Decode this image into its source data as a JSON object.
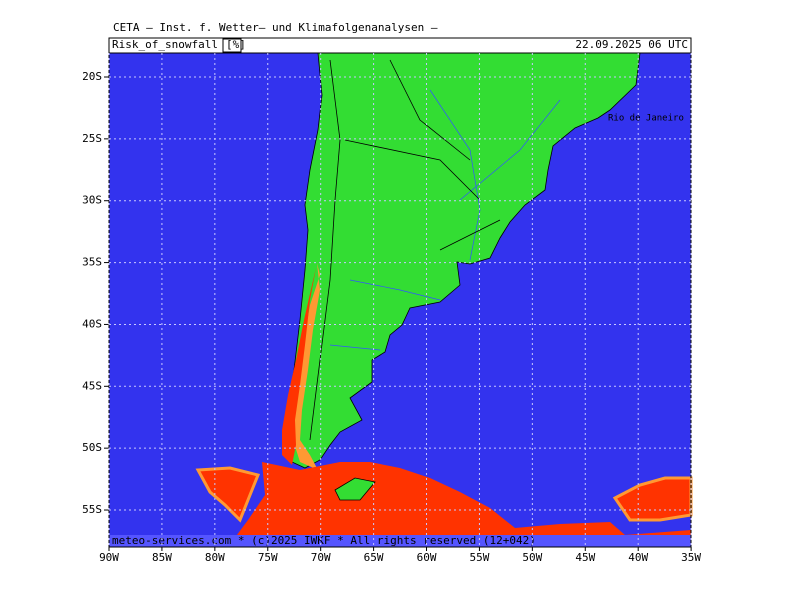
{
  "header": {
    "title": "CETA – Inst. f. Wetter– und Klimafolgenanalysen –",
    "field": "Risk_of_snowfall",
    "unit": "[%]",
    "datetime": "22.09.2025 06 UTC"
  },
  "map": {
    "lat_ticks": [
      {
        "value": -20,
        "label": "20S"
      },
      {
        "value": -25,
        "label": "25S"
      },
      {
        "value": -30,
        "label": "30S"
      },
      {
        "value": -35,
        "label": "35S"
      },
      {
        "value": -40,
        "label": "40S"
      },
      {
        "value": -45,
        "label": "45S"
      },
      {
        "value": -50,
        "label": "50S"
      },
      {
        "value": -55,
        "label": "55S"
      }
    ],
    "lon_ticks": [
      {
        "value": -90,
        "label": "90W"
      },
      {
        "value": -85,
        "label": "85W"
      },
      {
        "value": -80,
        "label": "80W"
      },
      {
        "value": -75,
        "label": "75W"
      },
      {
        "value": -70,
        "label": "70W"
      },
      {
        "value": -65,
        "label": "65W"
      },
      {
        "value": -60,
        "label": "60W"
      },
      {
        "value": -55,
        "label": "55W"
      },
      {
        "value": -50,
        "label": "50W"
      },
      {
        "value": -45,
        "label": "45W"
      },
      {
        "value": -40,
        "label": "40W"
      },
      {
        "value": -35,
        "label": "35W"
      }
    ],
    "places": [
      {
        "label": "Rio de Janeiro"
      }
    ],
    "footer": "meteo-services.com * (c)2025 IWKF * All rights reserved (12+042)"
  }
}
